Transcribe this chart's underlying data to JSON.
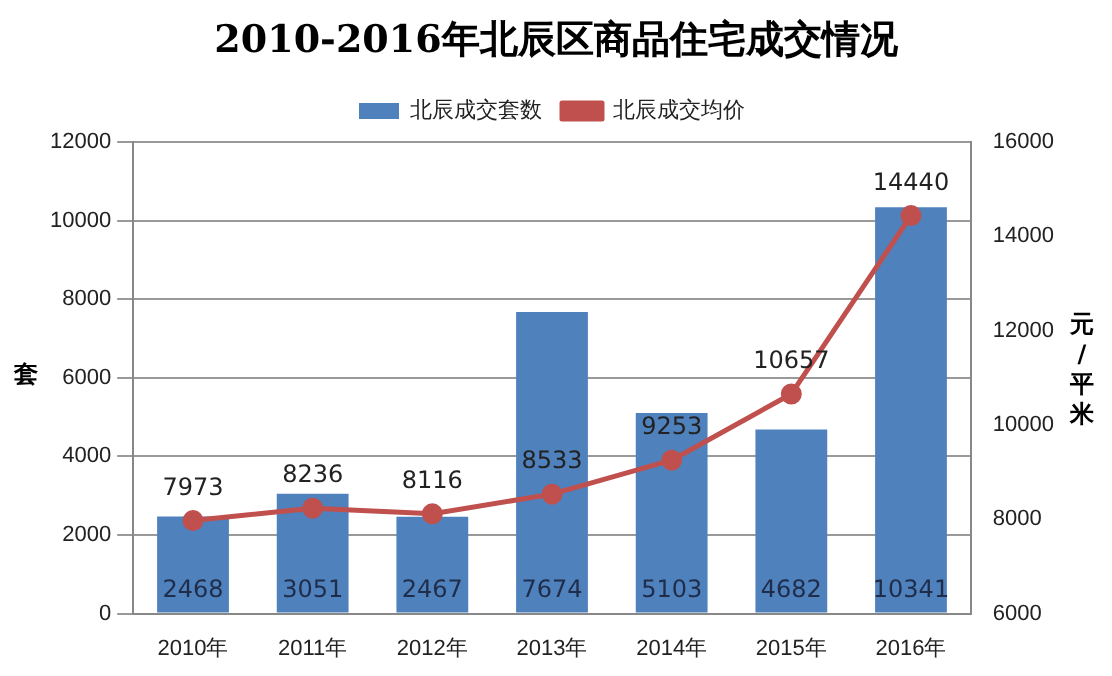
{
  "chart_data": {
    "type": "bar",
    "title": "2010-2016年北辰区商品住宅成交情况",
    "categories": [
      "2010年",
      "2011年",
      "2012年",
      "2013年",
      "2014年",
      "2015年",
      "2016年"
    ],
    "series": [
      {
        "name": "北辰成交套数",
        "color": "#4f81bd",
        "values": [
          2468,
          3051,
          2467,
          7674,
          5103,
          4682,
          10341
        ]
      },
      {
        "name": "北辰成交均价",
        "type": "line",
        "axis": "y2",
        "color": "#c0504d",
        "values": [
          7973,
          8236,
          8116,
          8533,
          9253,
          10657,
          14440
        ]
      }
    ],
    "ylabel": "套",
    "y2label": "元/平米",
    "ylim": [
      0,
      12000
    ],
    "yticks": [
      0,
      2000,
      4000,
      6000,
      8000,
      10000,
      12000
    ],
    "y2lim": [
      6000,
      16000
    ],
    "y2ticks": [
      6000,
      8000,
      10000,
      12000,
      14000,
      16000
    ],
    "grid": "y",
    "legend": "top",
    "marker": "circle",
    "line_style": "solid",
    "data_labels": true
  }
}
